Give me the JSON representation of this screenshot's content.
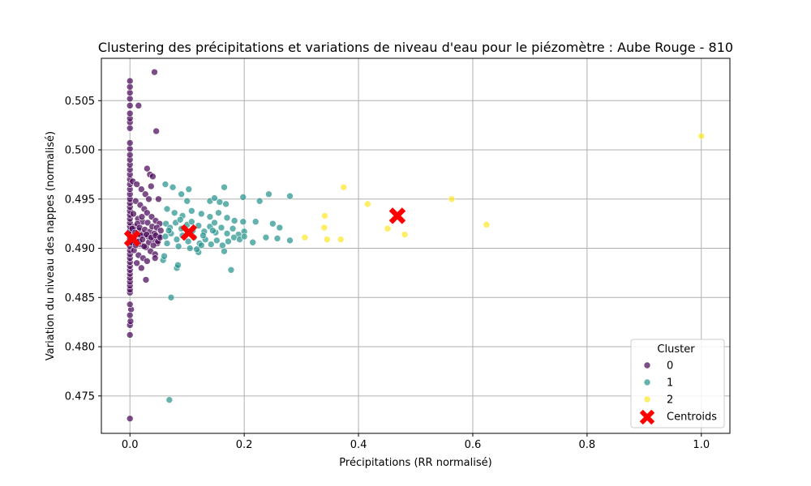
{
  "chart_data": {
    "type": "scatter",
    "title": "Clustering des précipitations et variations de niveau d'eau pour le piézomètre : Aube Rouge - 810",
    "xlabel": "Précipitations (RR normalisé)",
    "ylabel": "Variation du niveau des nappes (normalisé)",
    "xlim": [
      -0.05,
      1.05
    ],
    "ylim": [
      0.4712,
      0.5093
    ],
    "xticks": [
      0.0,
      0.2,
      0.4,
      0.6,
      0.8,
      1.0
    ],
    "xtick_labels": [
      "0.0",
      "0.2",
      "0.4",
      "0.6",
      "0.8",
      "1.0"
    ],
    "yticks": [
      0.475,
      0.48,
      0.485,
      0.49,
      0.495,
      0.5,
      0.505
    ],
    "ytick_labels": [
      "0.475",
      "0.480",
      "0.485",
      "0.490",
      "0.495",
      "0.500",
      "0.505"
    ],
    "grid": true,
    "legend": {
      "title": "Cluster",
      "position": "lower-right",
      "entries": [
        "0",
        "1",
        "2",
        "Centroids"
      ]
    },
    "colors": {
      "0": "#440154",
      "1": "#21918c",
      "2": "#fde725",
      "centroids": "#ff0000"
    },
    "series": [
      {
        "name": "0",
        "points": [
          [
            0.0,
            0.4727
          ],
          [
            0.0,
            0.4812
          ],
          [
            0.0,
            0.4822
          ],
          [
            0.001,
            0.4826
          ],
          [
            0.0,
            0.4832
          ],
          [
            0.002,
            0.4838
          ],
          [
            0.0,
            0.4843
          ],
          [
            0.0,
            0.4855
          ],
          [
            0.0,
            0.4858
          ],
          [
            0.0,
            0.4862
          ],
          [
            0.0,
            0.4866
          ],
          [
            0.0,
            0.487
          ],
          [
            0.0,
            0.4874
          ],
          [
            0.0,
            0.4878
          ],
          [
            0.0,
            0.4882
          ],
          [
            0.0,
            0.4886
          ],
          [
            0.0,
            0.489
          ],
          [
            0.0,
            0.4894
          ],
          [
            0.0,
            0.4898
          ],
          [
            0.0,
            0.4902
          ],
          [
            0.0,
            0.4906
          ],
          [
            0.0,
            0.491
          ],
          [
            0.0,
            0.4914
          ],
          [
            0.0,
            0.4918
          ],
          [
            0.0,
            0.4922
          ],
          [
            0.0,
            0.4926
          ],
          [
            0.0,
            0.493
          ],
          [
            0.0,
            0.4934
          ],
          [
            0.0,
            0.4938
          ],
          [
            0.0,
            0.4942
          ],
          [
            0.0,
            0.4946
          ],
          [
            0.0,
            0.495
          ],
          [
            0.0,
            0.4955
          ],
          [
            0.0,
            0.496
          ],
          [
            0.0,
            0.4965
          ],
          [
            0.0,
            0.497
          ],
          [
            0.0,
            0.4975
          ],
          [
            0.0,
            0.498
          ],
          [
            0.0,
            0.4985
          ],
          [
            0.0,
            0.499
          ],
          [
            0.0,
            0.4995
          ],
          [
            0.0,
            0.5001
          ],
          [
            0.0,
            0.5007
          ],
          [
            0.0,
            0.5022
          ],
          [
            0.0,
            0.5028
          ],
          [
            0.0,
            0.5032
          ],
          [
            0.0,
            0.5037
          ],
          [
            0.0,
            0.5045
          ],
          [
            0.0,
            0.5052
          ],
          [
            0.0,
            0.5058
          ],
          [
            0.0,
            0.5064
          ],
          [
            0.0,
            0.507
          ],
          [
            0.015,
            0.5045
          ],
          [
            0.043,
            0.5079
          ],
          [
            0.046,
            0.5019
          ],
          [
            0.03,
            0.4981
          ],
          [
            0.035,
            0.4975
          ],
          [
            0.04,
            0.4973
          ],
          [
            0.05,
            0.495
          ],
          [
            0.037,
            0.4963
          ],
          [
            0.005,
            0.4968
          ],
          [
            0.012,
            0.4965
          ],
          [
            0.02,
            0.496
          ],
          [
            0.027,
            0.4955
          ],
          [
            0.033,
            0.495
          ],
          [
            0.01,
            0.4948
          ],
          [
            0.018,
            0.4944
          ],
          [
            0.025,
            0.494
          ],
          [
            0.03,
            0.4936
          ],
          [
            0.038,
            0.4932
          ],
          [
            0.045,
            0.4928
          ],
          [
            0.052,
            0.4925
          ],
          [
            0.006,
            0.4935
          ],
          [
            0.014,
            0.493
          ],
          [
            0.022,
            0.4927
          ],
          [
            0.008,
            0.4922
          ],
          [
            0.016,
            0.4918
          ],
          [
            0.024,
            0.4915
          ],
          [
            0.032,
            0.4912
          ],
          [
            0.041,
            0.4909
          ],
          [
            0.048,
            0.4905
          ],
          [
            0.005,
            0.4912
          ],
          [
            0.011,
            0.4908
          ],
          [
            0.019,
            0.4904
          ],
          [
            0.028,
            0.4901
          ],
          [
            0.036,
            0.4897
          ],
          [
            0.044,
            0.4894
          ],
          [
            0.007,
            0.4898
          ],
          [
            0.015,
            0.4893
          ],
          [
            0.023,
            0.489
          ],
          [
            0.03,
            0.4887
          ],
          [
            0.012,
            0.4885
          ],
          [
            0.02,
            0.488
          ],
          [
            0.028,
            0.4868
          ],
          [
            0.044,
            0.489
          ],
          [
            0.004,
            0.492
          ],
          [
            0.009,
            0.4916
          ],
          [
            0.013,
            0.4925
          ],
          [
            0.017,
            0.4921
          ],
          [
            0.021,
            0.4932
          ],
          [
            0.026,
            0.4919
          ],
          [
            0.031,
            0.4926
          ],
          [
            0.035,
            0.4917
          ],
          [
            0.039,
            0.4922
          ],
          [
            0.043,
            0.4915
          ],
          [
            0.047,
            0.4921
          ],
          [
            0.051,
            0.4912
          ],
          [
            0.054,
            0.4918
          ],
          [
            0.003,
            0.4906
          ],
          [
            0.007,
            0.4911
          ],
          [
            0.01,
            0.4903
          ],
          [
            0.013,
            0.4914
          ],
          [
            0.016,
            0.4907
          ],
          [
            0.019,
            0.4913
          ],
          [
            0.022,
            0.4909
          ],
          [
            0.025,
            0.4902
          ],
          [
            0.029,
            0.4914
          ],
          [
            0.033,
            0.4906
          ],
          [
            0.037,
            0.4911
          ],
          [
            0.041,
            0.4903
          ],
          [
            0.045,
            0.4913
          ],
          [
            0.049,
            0.4907
          ],
          [
            0.053,
            0.4911
          ]
        ]
      },
      {
        "name": "1",
        "points": [
          [
            0.069,
            0.4746
          ],
          [
            0.072,
            0.485
          ],
          [
            0.058,
            0.4888
          ],
          [
            0.06,
            0.4892
          ],
          [
            0.082,
            0.488
          ],
          [
            0.084,
            0.4883
          ],
          [
            0.12,
            0.4896
          ],
          [
            0.117,
            0.4899
          ],
          [
            0.165,
            0.4897
          ],
          [
            0.177,
            0.4878
          ],
          [
            0.062,
            0.4965
          ],
          [
            0.075,
            0.4962
          ],
          [
            0.09,
            0.4955
          ],
          [
            0.103,
            0.496
          ],
          [
            0.1,
            0.4948
          ],
          [
            0.14,
            0.4948
          ],
          [
            0.148,
            0.4951
          ],
          [
            0.157,
            0.4947
          ],
          [
            0.165,
            0.4962
          ],
          [
            0.168,
            0.4945
          ],
          [
            0.198,
            0.4952
          ],
          [
            0.227,
            0.4948
          ],
          [
            0.243,
            0.4955
          ],
          [
            0.28,
            0.4953
          ],
          [
            0.065,
            0.494
          ],
          [
            0.078,
            0.4936
          ],
          [
            0.092,
            0.4933
          ],
          [
            0.108,
            0.4938
          ],
          [
            0.125,
            0.4935
          ],
          [
            0.14,
            0.4932
          ],
          [
            0.155,
            0.4936
          ],
          [
            0.17,
            0.4931
          ],
          [
            0.183,
            0.4928
          ],
          [
            0.198,
            0.4927
          ],
          [
            0.22,
            0.4927
          ],
          [
            0.25,
            0.4925
          ],
          [
            0.262,
            0.4921
          ],
          [
            0.063,
            0.4925
          ],
          [
            0.07,
            0.4921
          ],
          [
            0.08,
            0.4926
          ],
          [
            0.09,
            0.492
          ],
          [
            0.1,
            0.4924
          ],
          [
            0.11,
            0.4918
          ],
          [
            0.12,
            0.4923
          ],
          [
            0.13,
            0.4917
          ],
          [
            0.14,
            0.4922
          ],
          [
            0.15,
            0.4916
          ],
          [
            0.16,
            0.4921
          ],
          [
            0.17,
            0.4915
          ],
          [
            0.18,
            0.492
          ],
          [
            0.19,
            0.4914
          ],
          [
            0.2,
            0.4917
          ],
          [
            0.062,
            0.4912
          ],
          [
            0.072,
            0.4915
          ],
          [
            0.082,
            0.4909
          ],
          [
            0.092,
            0.4913
          ],
          [
            0.102,
            0.4907
          ],
          [
            0.112,
            0.4911
          ],
          [
            0.122,
            0.4905
          ],
          [
            0.132,
            0.4909
          ],
          [
            0.142,
            0.4904
          ],
          [
            0.152,
            0.4908
          ],
          [
            0.162,
            0.4903
          ],
          [
            0.172,
            0.4907
          ],
          [
            0.182,
            0.4911
          ],
          [
            0.192,
            0.4909
          ],
          [
            0.2,
            0.4912
          ],
          [
            0.215,
            0.4906
          ],
          [
            0.238,
            0.4911
          ],
          [
            0.258,
            0.491
          ],
          [
            0.28,
            0.4908
          ],
          [
            0.065,
            0.4905
          ],
          [
            0.085,
            0.4902
          ],
          [
            0.105,
            0.49
          ],
          [
            0.125,
            0.4903
          ],
          [
            0.145,
            0.4918
          ],
          [
            0.068,
            0.4918
          ],
          [
            0.088,
            0.4929
          ],
          [
            0.108,
            0.4927
          ],
          [
            0.128,
            0.4913
          ],
          [
            0.148,
            0.4926
          ]
        ]
      },
      {
        "name": "2",
        "points": [
          [
            1.0,
            0.5014
          ],
          [
            0.374,
            0.4962
          ],
          [
            0.416,
            0.4945
          ],
          [
            0.563,
            0.495
          ],
          [
            0.341,
            0.4933
          ],
          [
            0.34,
            0.4921
          ],
          [
            0.451,
            0.492
          ],
          [
            0.624,
            0.4924
          ],
          [
            0.481,
            0.4914
          ],
          [
            0.306,
            0.4911
          ],
          [
            0.345,
            0.4909
          ],
          [
            0.369,
            0.4909
          ]
        ]
      }
    ],
    "centroids": [
      [
        0.004,
        0.491
      ],
      [
        0.103,
        0.4916
      ],
      [
        0.468,
        0.4933
      ]
    ]
  }
}
